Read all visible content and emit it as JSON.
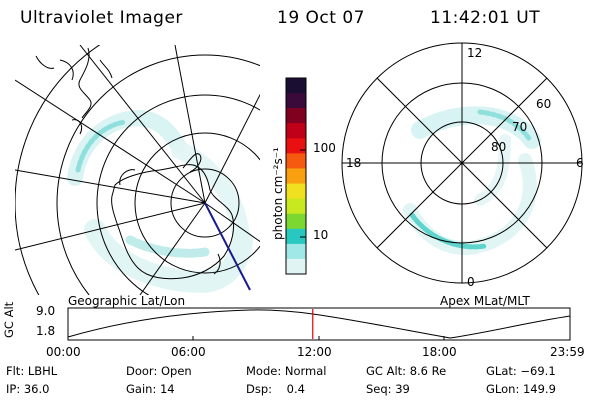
{
  "header": {
    "title": "Ultraviolet Imager",
    "date": "19 Oct 07",
    "time": "11:42:01 UT"
  },
  "panels": {
    "left_label": "Geographic Lat/Lon",
    "right_label": "Apex MLat/MLT"
  },
  "colorbar": {
    "unit_label": "photon cm⁻²s⁻¹",
    "ticks": [
      "100",
      "10"
    ],
    "colors": [
      "#1a0f33",
      "#3a0a3a",
      "#800020",
      "#c00018",
      "#e81010",
      "#f55a10",
      "#f8a010",
      "#f0e020",
      "#c8e820",
      "#7cd830",
      "#28c8c0",
      "#a0e8e8",
      "#e0f4f4"
    ]
  },
  "polar_plot": {
    "mlt_labels": [
      "12",
      "18",
      "6",
      "0"
    ],
    "lat_labels": [
      "60",
      "70",
      "80"
    ]
  },
  "timeline": {
    "y_axis_label": "GC Alt",
    "y_ticks": [
      "9.0",
      "1.8"
    ],
    "x_ticks": [
      "00:00",
      "06:00",
      "12:00",
      "18:00",
      "23:59"
    ],
    "current_time_fraction": 0.4876
  },
  "info": {
    "filter": "Flt: LBHL",
    "ip": "IP: 36.0",
    "door": "Door: Open",
    "gain": "Gain: 14",
    "mode": "Mode: Normal",
    "dsp": "Dsp:    0.4",
    "gc_alt": "GC Alt: 8.6 Re",
    "seq": "Seq: 39",
    "glat": "GLat: −69.1",
    "glon": "GLon: 149.9"
  }
}
